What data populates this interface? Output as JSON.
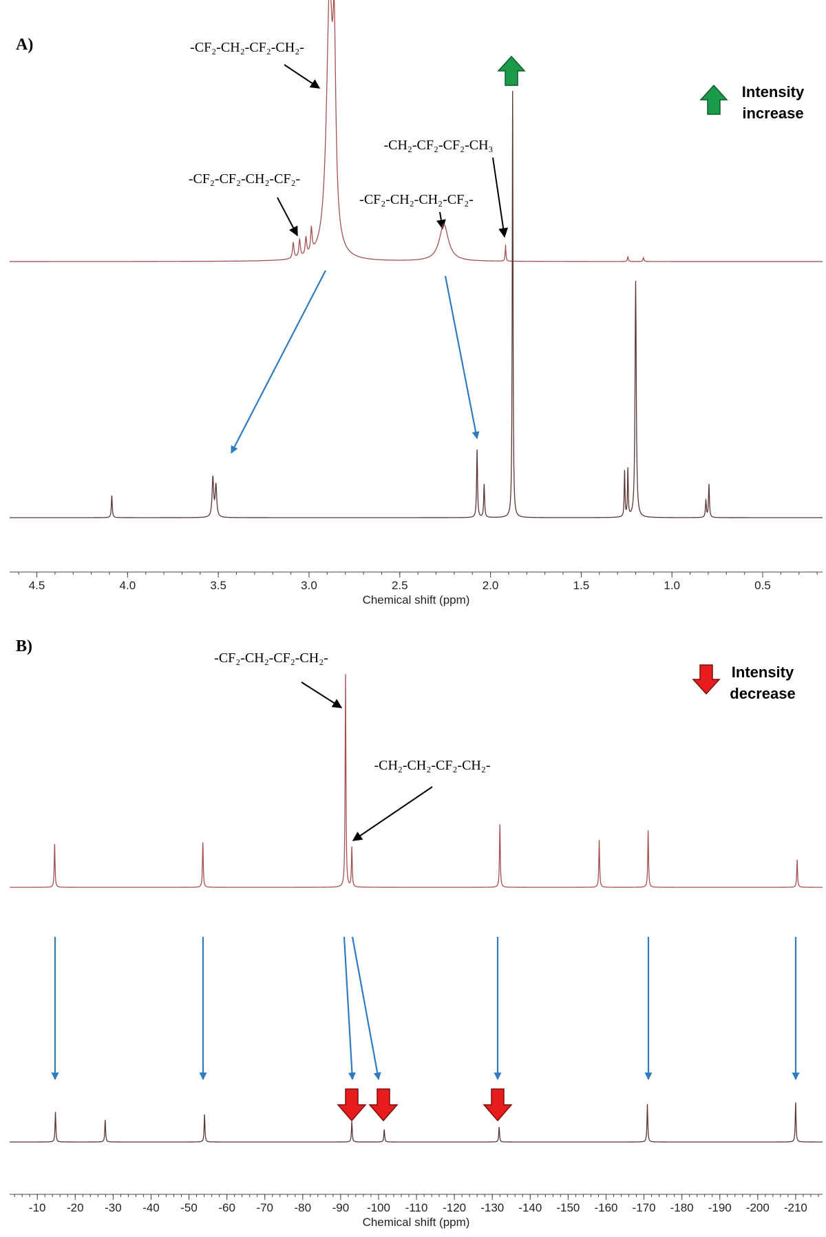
{
  "chart_data": [
    {
      "type": "spectrum",
      "panel_label": "A)",
      "xlabel": "Chemical shift (ppm)",
      "xlim": [
        4.65,
        0.17
      ],
      "xticks": [
        4.5,
        {
          "value": 4,
          "label": "4.0"
        },
        3.5,
        {
          "value": 3,
          "label": "3.0"
        },
        2.5,
        {
          "value": 2,
          "label": "2.0"
        },
        1.5,
        {
          "value": 1,
          "label": "1.0"
        },
        0.5
      ],
      "series": [
        {
          "color": "#a3504e",
          "x": [
            2.887,
            2.861,
            3.087,
            3.052,
            3.017,
            2.987,
            2.257,
            1.917,
            1.243,
            1.157
          ],
          "values": [
            327,
            210,
            20,
            22,
            22,
            30,
            47,
            20,
            6,
            5
          ],
          "widths": [
            0.04,
            0.02,
            0.01,
            0.01,
            0.01,
            0.01,
            0.06,
            0.005,
            0.006,
            0.006
          ]
        },
        {
          "color": "#5b3434",
          "x": [
            4.087,
            3.53,
            3.513,
            2.074,
            2.035,
            1.878,
            1.261,
            1.243,
            1.2,
            0.813,
            0.796
          ],
          "values": [
            28,
            50,
            40,
            86,
            42,
            541,
            58,
            60,
            300,
            22,
            42
          ],
          "widths": [
            0.006,
            0.01,
            0.01,
            0.006,
            0.006,
            0.005,
            0.005,
            0.005,
            0.008,
            0.006,
            0.006
          ]
        }
      ],
      "annotations": [
        "-CF₂-CH₂-CF₂-CH₂-",
        "-CF₂-CF₂-CH₂-CF₂-",
        "-CF₂-CH₂-CH₂-CF₂-",
        "-CH₂-CF₂-CF₂-CH₃"
      ],
      "indicator": [
        "Intensity",
        "increase"
      ]
    },
    {
      "type": "spectrum",
      "panel_label": "B)",
      "xlabel": "Chemical shift (ppm)",
      "xlim": [
        -2.7,
        -217.1
      ],
      "xticks": [
        -10,
        -20,
        -30,
        -40,
        -50,
        -60,
        -70,
        -80,
        -90,
        -100,
        -110,
        -120,
        -130,
        -140,
        -150,
        -160,
        -170,
        -180,
        -190,
        -200,
        -210
      ],
      "series": [
        {
          "color": "#a3504e",
          "x": [
            -14.57,
            -53.66,
            -91.29,
            -92.95,
            -132.0,
            -158.2,
            -171.1,
            -210.4
          ],
          "values": [
            55,
            57,
            270,
            50,
            80,
            60,
            72,
            35
          ],
          "widths": [
            0.25,
            0.25,
            0.25,
            0.25,
            0.25,
            0.25,
            0.25,
            0.25
          ]
        },
        {
          "color": "#5b3434",
          "x": [
            -14.78,
            -27.9,
            -54.1,
            -92.95,
            -101.5,
            -131.8,
            -170.9,
            -210.0
          ],
          "values": [
            38,
            28,
            35,
            26,
            16,
            19,
            48,
            50
          ],
          "widths": [
            0.25,
            0.25,
            0.25,
            0.25,
            0.25,
            0.25,
            0.25,
            0.25
          ]
        }
      ],
      "annotations": [
        "-CF₂-CH₂-CF₂-CH₂-",
        "-CH₂-CH₂-CF₂-CH₂-"
      ],
      "indicator": [
        "Intensity",
        "decrease"
      ]
    }
  ]
}
